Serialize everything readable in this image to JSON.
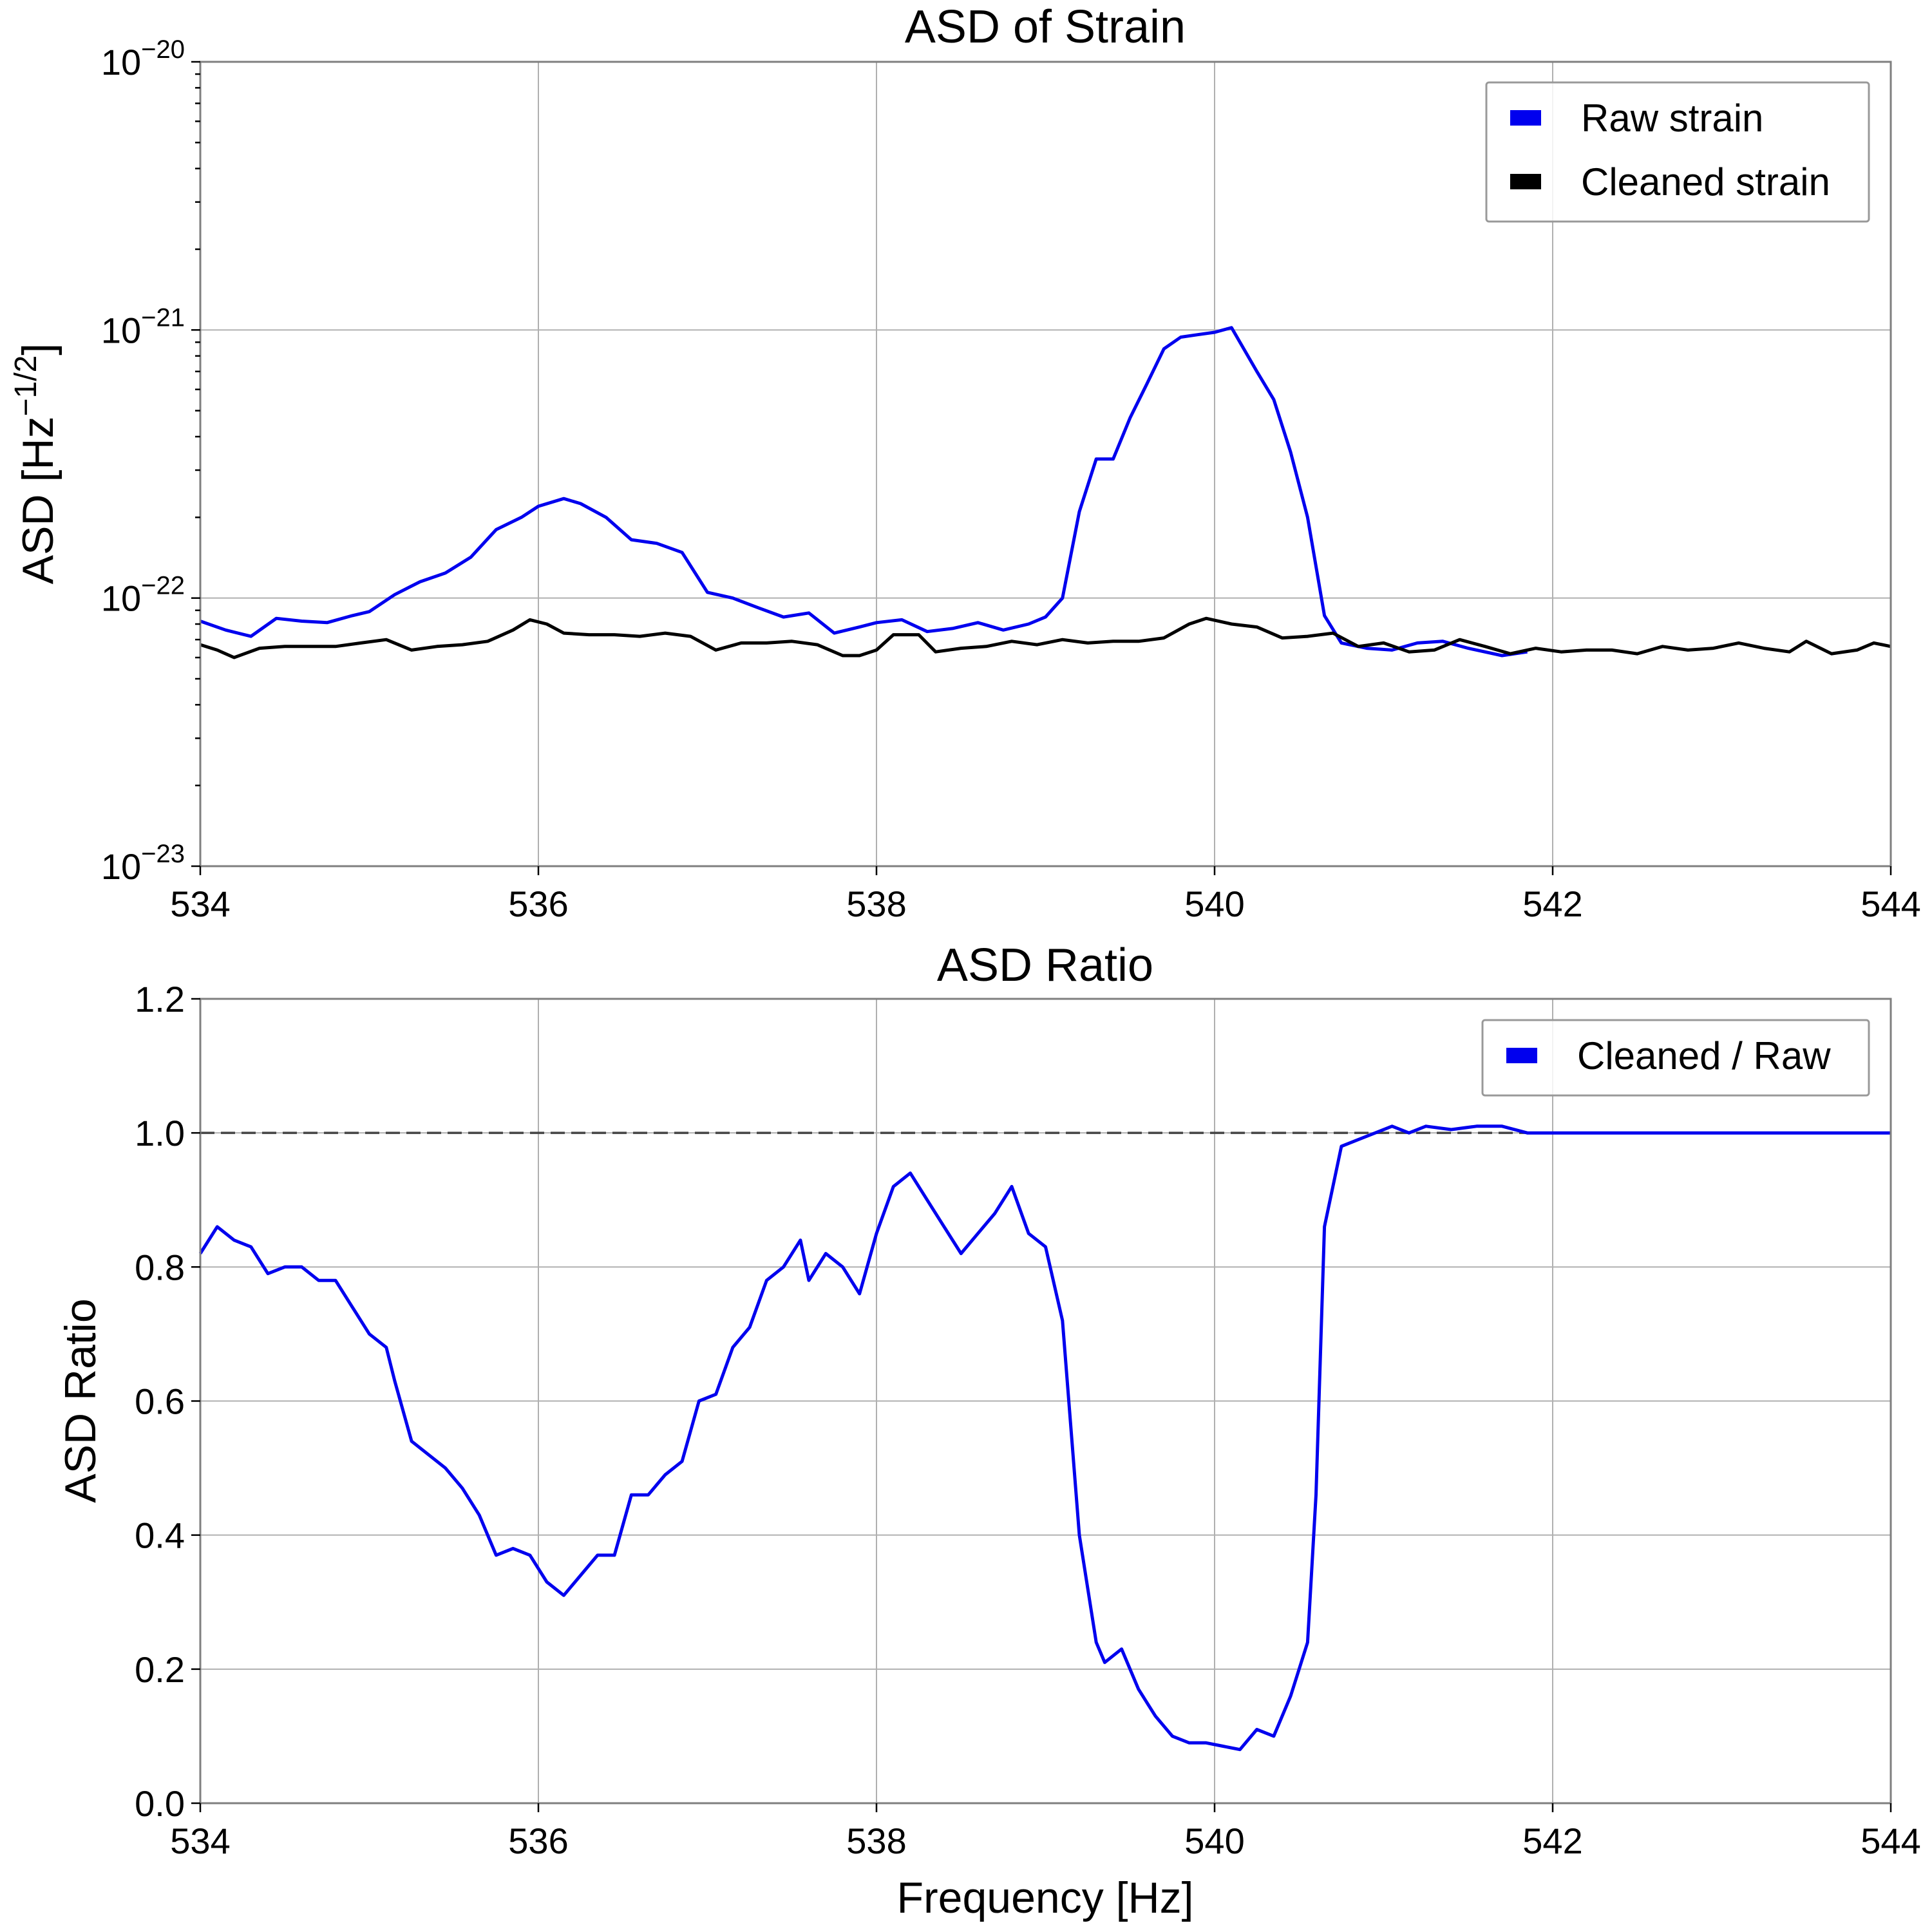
{
  "chart_data": [
    {
      "type": "line",
      "title": "ASD of Strain",
      "xlabel": "",
      "ylabel": "ASD [Hz",
      "ylabel_exp": "−1/2",
      "yscale": "log",
      "xlim": [
        534,
        544
      ],
      "ylim": [
        1e-23,
        1e-20
      ],
      "xticks": [
        "534",
        "536",
        "538",
        "540",
        "542",
        "544"
      ],
      "yticks": [
        {
          "value": 1e-23,
          "base": "10",
          "exp": "−23"
        },
        {
          "value": 1e-22,
          "base": "10",
          "exp": "−22"
        },
        {
          "value": 1e-21,
          "base": "10",
          "exp": "−21"
        },
        {
          "value": 1e-20,
          "base": "10",
          "exp": "−20"
        }
      ],
      "grid": true,
      "legend_position": "top-right",
      "series": [
        {
          "name": "Raw strain",
          "color": "#0000ee",
          "points": [
            [
              534.0,
              8.2e-23
            ],
            [
              534.15,
              7.6e-23
            ],
            [
              534.3,
              7.2e-23
            ],
            [
              534.45,
              8.4e-23
            ],
            [
              534.6,
              8.2e-23
            ],
            [
              534.75,
              8.1e-23
            ],
            [
              534.9,
              8.6e-23
            ],
            [
              535.0,
              8.9e-23
            ],
            [
              535.15,
              1.03e-22
            ],
            [
              535.3,
              1.15e-22
            ],
            [
              535.45,
              1.24e-22
            ],
            [
              535.6,
              1.42e-22
            ],
            [
              535.75,
              1.8e-22
            ],
            [
              535.9,
              2e-22
            ],
            [
              536.0,
              2.2e-22
            ],
            [
              536.15,
              2.35e-22
            ],
            [
              536.25,
              2.25e-22
            ],
            [
              536.4,
              2e-22
            ],
            [
              536.55,
              1.65e-22
            ],
            [
              536.7,
              1.6e-22
            ],
            [
              536.85,
              1.48e-22
            ],
            [
              537.0,
              1.05e-22
            ],
            [
              537.15,
              1e-22
            ],
            [
              537.3,
              9.2e-23
            ],
            [
              537.45,
              8.5e-23
            ],
            [
              537.6,
              8.8e-23
            ],
            [
              537.75,
              7.4e-23
            ],
            [
              537.9,
              7.8e-23
            ],
            [
              538.0,
              8.1e-23
            ],
            [
              538.15,
              8.3e-23
            ],
            [
              538.3,
              7.5e-23
            ],
            [
              538.45,
              7.7e-23
            ],
            [
              538.6,
              8.1e-23
            ],
            [
              538.75,
              7.6e-23
            ],
            [
              538.9,
              8e-23
            ],
            [
              539.0,
              8.5e-23
            ],
            [
              539.1,
              1e-22
            ],
            [
              539.2,
              2.1e-22
            ],
            [
              539.3,
              3.3e-22
            ],
            [
              539.4,
              3.3e-22
            ],
            [
              539.5,
              4.7e-22
            ],
            [
              539.6,
              6.3e-22
            ],
            [
              539.7,
              8.5e-22
            ],
            [
              539.8,
              9.4e-22
            ],
            [
              539.9,
              9.6e-22
            ],
            [
              540.0,
              9.8e-22
            ],
            [
              540.1,
              1.02e-21
            ],
            [
              540.25,
              7e-22
            ],
            [
              540.35,
              5.5e-22
            ],
            [
              540.45,
              3.5e-22
            ],
            [
              540.55,
              2e-22
            ],
            [
              540.65,
              8.6e-23
            ],
            [
              540.75,
              6.8e-23
            ],
            [
              540.9,
              6.5e-23
            ],
            [
              541.05,
              6.4e-23
            ],
            [
              541.2,
              6.8e-23
            ],
            [
              541.35,
              6.9e-23
            ],
            [
              541.5,
              6.5e-23
            ],
            [
              541.7,
              6.1e-23
            ],
            [
              541.85,
              6.3e-23
            ]
          ]
        },
        {
          "name": "Cleaned strain",
          "color": "#000000",
          "points": [
            [
              534.0,
              6.7e-23
            ],
            [
              534.1,
              6.4e-23
            ],
            [
              534.2,
              6e-23
            ],
            [
              534.35,
              6.5e-23
            ],
            [
              534.5,
              6.6e-23
            ],
            [
              534.65,
              6.6e-23
            ],
            [
              534.8,
              6.6e-23
            ],
            [
              534.95,
              6.8e-23
            ],
            [
              535.1,
              7e-23
            ],
            [
              535.25,
              6.4e-23
            ],
            [
              535.4,
              6.6e-23
            ],
            [
              535.55,
              6.7e-23
            ],
            [
              535.7,
              6.9e-23
            ],
            [
              535.85,
              7.6e-23
            ],
            [
              535.95,
              8.3e-23
            ],
            [
              536.05,
              8e-23
            ],
            [
              536.15,
              7.4e-23
            ],
            [
              536.3,
              7.3e-23
            ],
            [
              536.45,
              7.3e-23
            ],
            [
              536.6,
              7.2e-23
            ],
            [
              536.75,
              7.4e-23
            ],
            [
              536.9,
              7.2e-23
            ],
            [
              537.05,
              6.4e-23
            ],
            [
              537.2,
              6.8e-23
            ],
            [
              537.35,
              6.8e-23
            ],
            [
              537.5,
              6.9e-23
            ],
            [
              537.65,
              6.7e-23
            ],
            [
              537.8,
              6.1e-23
            ],
            [
              537.9,
              6.1e-23
            ],
            [
              538.0,
              6.4e-23
            ],
            [
              538.1,
              7.3e-23
            ],
            [
              538.25,
              7.3e-23
            ],
            [
              538.35,
              6.3e-23
            ],
            [
              538.5,
              6.5e-23
            ],
            [
              538.65,
              6.6e-23
            ],
            [
              538.8,
              6.9e-23
            ],
            [
              538.95,
              6.7e-23
            ],
            [
              539.1,
              7e-23
            ],
            [
              539.25,
              6.8e-23
            ],
            [
              539.4,
              6.9e-23
            ],
            [
              539.55,
              6.9e-23
            ],
            [
              539.7,
              7.1e-23
            ],
            [
              539.85,
              8e-23
            ],
            [
              539.95,
              8.4e-23
            ],
            [
              540.1,
              8e-23
            ],
            [
              540.25,
              7.8e-23
            ],
            [
              540.4,
              7.1e-23
            ],
            [
              540.55,
              7.2e-23
            ],
            [
              540.7,
              7.4e-23
            ],
            [
              540.85,
              6.6e-23
            ],
            [
              541.0,
              6.8e-23
            ],
            [
              541.15,
              6.3e-23
            ],
            [
              541.3,
              6.4e-23
            ],
            [
              541.45,
              7e-23
            ],
            [
              541.6,
              6.6e-23
            ],
            [
              541.75,
              6.2e-23
            ],
            [
              541.9,
              6.5e-23
            ],
            [
              542.05,
              6.3e-23
            ],
            [
              542.2,
              6.4e-23
            ],
            [
              542.35,
              6.4e-23
            ],
            [
              542.5,
              6.2e-23
            ],
            [
              542.65,
              6.6e-23
            ],
            [
              542.8,
              6.4e-23
            ],
            [
              542.95,
              6.5e-23
            ],
            [
              543.1,
              6.8e-23
            ],
            [
              543.25,
              6.5e-23
            ],
            [
              543.4,
              6.3e-23
            ],
            [
              543.5,
              6.9e-23
            ],
            [
              543.65,
              6.2e-23
            ],
            [
              543.8,
              6.4e-23
            ],
            [
              543.9,
              6.8e-23
            ],
            [
              544.0,
              6.6e-23
            ]
          ]
        }
      ]
    },
    {
      "type": "line",
      "title": "ASD Ratio",
      "xlabel": "Frequency [Hz]",
      "ylabel": "ASD Ratio",
      "yscale": "linear",
      "xlim": [
        534,
        544
      ],
      "ylim": [
        0,
        1.2
      ],
      "xticks": [
        "534",
        "536",
        "538",
        "540",
        "542",
        "544"
      ],
      "yticks": [
        "0.0",
        "0.2",
        "0.4",
        "0.6",
        "0.8",
        "1.0",
        "1.2"
      ],
      "reference_line": 1.0,
      "grid": true,
      "legend_position": "top-right",
      "series": [
        {
          "name": "Cleaned / Raw",
          "color": "#0000ee",
          "points": [
            [
              534.0,
              0.82
            ],
            [
              534.1,
              0.86
            ],
            [
              534.2,
              0.84
            ],
            [
              534.3,
              0.83
            ],
            [
              534.4,
              0.79
            ],
            [
              534.5,
              0.8
            ],
            [
              534.6,
              0.8
            ],
            [
              534.7,
              0.78
            ],
            [
              534.8,
              0.78
            ],
            [
              534.9,
              0.74
            ],
            [
              535.0,
              0.7
            ],
            [
              535.1,
              0.68
            ],
            [
              535.15,
              0.63
            ],
            [
              535.25,
              0.54
            ],
            [
              535.35,
              0.52
            ],
            [
              535.45,
              0.5
            ],
            [
              535.55,
              0.47
            ],
            [
              535.65,
              0.43
            ],
            [
              535.75,
              0.37
            ],
            [
              535.85,
              0.38
            ],
            [
              535.95,
              0.37
            ],
            [
              536.05,
              0.33
            ],
            [
              536.15,
              0.31
            ],
            [
              536.25,
              0.34
            ],
            [
              536.35,
              0.37
            ],
            [
              536.45,
              0.37
            ],
            [
              536.55,
              0.46
            ],
            [
              536.65,
              0.46
            ],
            [
              536.75,
              0.49
            ],
            [
              536.85,
              0.51
            ],
            [
              536.95,
              0.6
            ],
            [
              537.05,
              0.61
            ],
            [
              537.15,
              0.68
            ],
            [
              537.25,
              0.71
            ],
            [
              537.35,
              0.78
            ],
            [
              537.45,
              0.8
            ],
            [
              537.55,
              0.84
            ],
            [
              537.6,
              0.78
            ],
            [
              537.7,
              0.82
            ],
            [
              537.8,
              0.8
            ],
            [
              537.9,
              0.76
            ],
            [
              538.0,
              0.85
            ],
            [
              538.1,
              0.92
            ],
            [
              538.2,
              0.94
            ],
            [
              538.3,
              0.9
            ],
            [
              538.4,
              0.86
            ],
            [
              538.5,
              0.82
            ],
            [
              538.6,
              0.85
            ],
            [
              538.7,
              0.88
            ],
            [
              538.8,
              0.92
            ],
            [
              538.9,
              0.85
            ],
            [
              539.0,
              0.83
            ],
            [
              539.1,
              0.72
            ],
            [
              539.2,
              0.4
            ],
            [
              539.3,
              0.24
            ],
            [
              539.35,
              0.21
            ],
            [
              539.45,
              0.23
            ],
            [
              539.55,
              0.17
            ],
            [
              539.65,
              0.13
            ],
            [
              539.75,
              0.1
            ],
            [
              539.85,
              0.09
            ],
            [
              539.95,
              0.09
            ],
            [
              540.05,
              0.085
            ],
            [
              540.15,
              0.08
            ],
            [
              540.25,
              0.11
            ],
            [
              540.35,
              0.1
            ],
            [
              540.45,
              0.16
            ],
            [
              540.55,
              0.24
            ],
            [
              540.6,
              0.46
            ],
            [
              540.65,
              0.86
            ],
            [
              540.75,
              0.98
            ],
            [
              540.85,
              0.99
            ],
            [
              540.95,
              1.0
            ],
            [
              541.05,
              1.01
            ],
            [
              541.15,
              1.0
            ],
            [
              541.25,
              1.01
            ],
            [
              541.4,
              1.005
            ],
            [
              541.55,
              1.01
            ],
            [
              541.7,
              1.01
            ],
            [
              541.85,
              1.0
            ],
            [
              542.0,
              1.0
            ],
            [
              544.0,
              1.0
            ]
          ]
        }
      ]
    }
  ]
}
